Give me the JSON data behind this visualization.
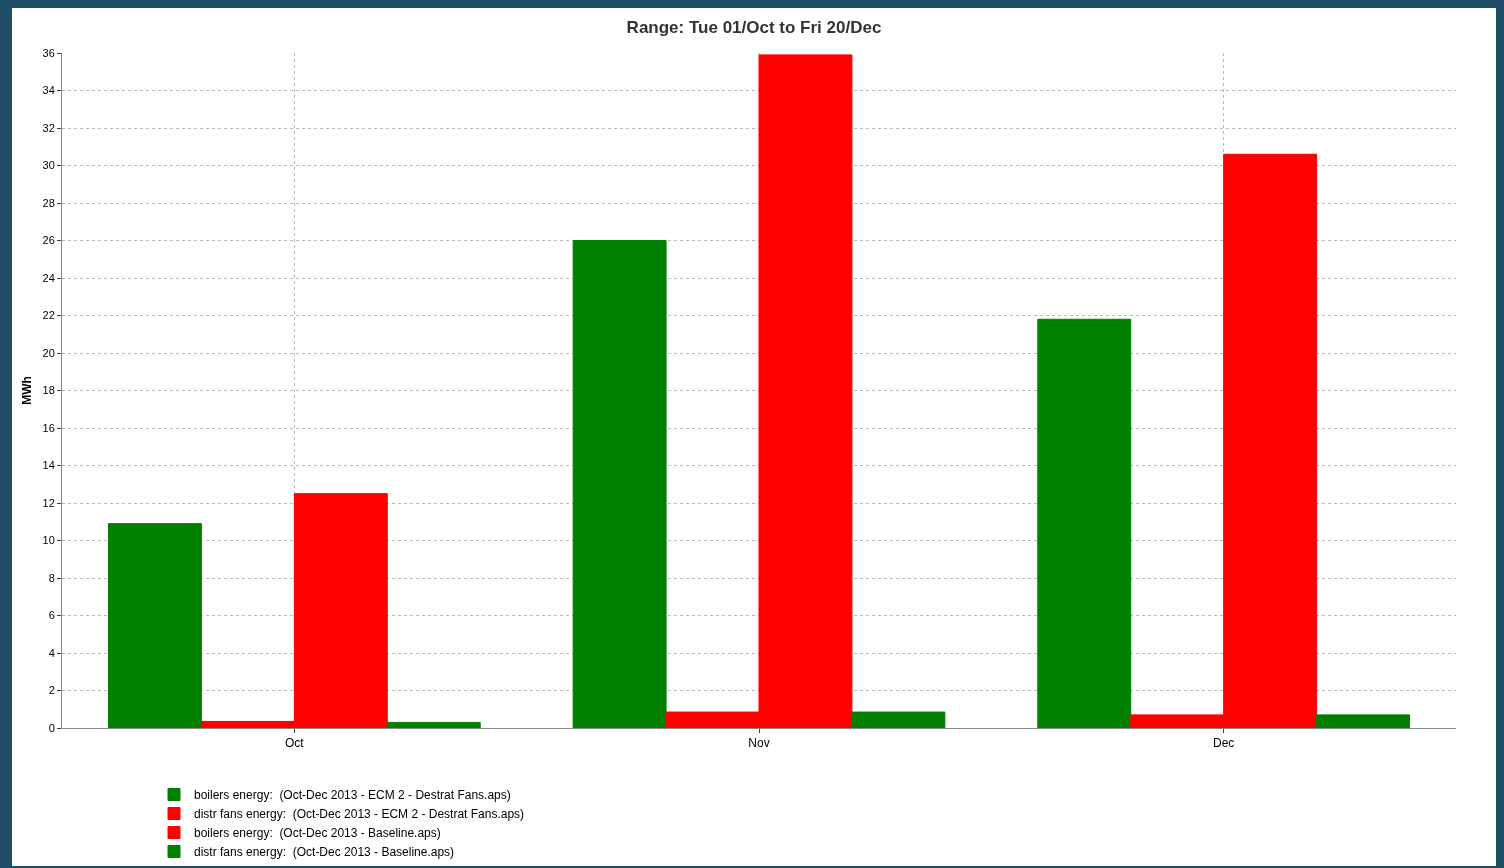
{
  "chart_data": {
    "type": "bar",
    "title": "Range: Tue 01/Oct to Fri 20/Dec",
    "ylabel": "MWh",
    "categories": [
      "Oct",
      "Nov",
      "Dec"
    ],
    "series": [
      {
        "name": "boilers energy:  (Oct-Dec 2013 - ECM 2 - Destrat Fans.aps)",
        "color": "#008000",
        "values": [
          10.9,
          26,
          21.8
        ]
      },
      {
        "name": "distr fans energy:  (Oct-Dec 2013 - ECM 2 - Destrat Fans.aps)",
        "color": "#ff0000",
        "values": [
          0.35,
          0.85,
          0.7
        ]
      },
      {
        "name": "boilers energy:  (Oct-Dec 2013 - Baseline.aps)",
        "color": "#ff0000",
        "values": [
          12.5,
          35.9,
          30.6
        ]
      },
      {
        "name": "distr fans energy:  (Oct-Dec 2013 - Baseline.aps)",
        "color": "#008000",
        "values": [
          0.3,
          0.85,
          0.7
        ]
      }
    ],
    "ylim": [
      0,
      36
    ],
    "yticks": [
      0,
      2,
      4,
      6,
      8,
      10,
      12,
      14,
      16,
      18,
      20,
      22,
      24,
      26,
      28,
      30,
      32,
      34,
      36
    ],
    "grid": true,
    "legend": "bottom"
  }
}
